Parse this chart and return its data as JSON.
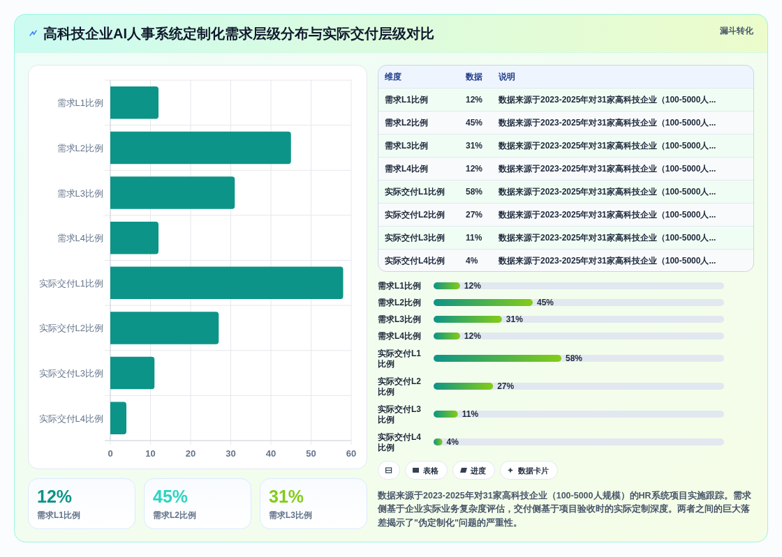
{
  "chart_data": [
    {
      "type": "bar",
      "orientation": "horizontal",
      "title": "高科技企业AI人事系统定制化需求层级分布与实际交付层级对比",
      "categories": [
        "需求L1比例",
        "需求L2比例",
        "需求L3比例",
        "需求L4比例",
        "实际交付L1比例",
        "实际交付L2比例",
        "实际交付L3比例",
        "实际交付L4比例"
      ],
      "values": [
        12,
        45,
        31,
        12,
        58,
        27,
        11,
        4
      ],
      "color": "#0d9488",
      "xlim": [
        0,
        60
      ],
      "xticks": [
        0,
        10,
        20,
        30,
        40,
        50,
        60
      ],
      "grid": true,
      "annotations": [
        "漏斗转化",
        "表格",
        "进度",
        "数据卡片",
        "数据来源于2023-2025年对31家高科技企业（100-5000人规模）的HR系统项目实施跟踪。需求侧基于企业实际业务复杂度评估，交付侧基于项目验收时的实际定制深度。两者之间的巨大落差揭示了\"伪定制化\"问题的严重性。"
      ]
    },
    {
      "type": "other",
      "categories": [
        "需求L1比例",
        "需求L2比例",
        "需求L3比例",
        "需求L4比例",
        "实际交付L1比例",
        "实际交付L2比例",
        "实际交付L3比例",
        "实际交付L4比例"
      ],
      "value_labels": [
        "12%",
        "45%",
        "31%",
        "12%",
        "58%",
        "27%",
        "11%",
        "4%"
      ],
      "annotations": [
        "维度",
        "数据",
        "说明",
        "数据来源于2023-2025年对31家高科技企业（100-5000人...",
        "数据来源于2023-2025年对31家高科技企业（100-5000人...",
        "数据来源于2023-2025年对31家高科技企业（100-5000人...",
        "数据来源于2023-2025年对31家高科技企业（100-5000人...",
        "数据来源于2023-2025年对31家高科技企业（100-5000人...",
        "数据来源于2023-2025年对31家高科技企业（100-5000人...",
        "数据来源于2023-2025年对31家高科技企业（100-5000人...",
        "数据来源于2023-2025年对31家高科技企业（100-5000人..."
      ]
    },
    {
      "type": "bar",
      "orientation": "horizontal",
      "categories": [
        "需求L1比例",
        "需求L2比例",
        "需求L3比例",
        "需求L4比例",
        "实际交付L1比例",
        "实际交付L2比例",
        "实际交付L3比例",
        "实际交付L4比例"
      ],
      "values": [
        12,
        45,
        31,
        12,
        58,
        27,
        11,
        4
      ],
      "value_labels": [
        "12%",
        "45%",
        "31%",
        "12%",
        "58%",
        "27%",
        "11%",
        "4%"
      ],
      "color": "#0d9488",
      "tick_labels": "y"
    },
    {
      "type": "other",
      "categories": [
        "需求L1比例",
        "需求L2比例",
        "需求L3比例"
      ],
      "value_labels": [
        "12%",
        "45%",
        "31%"
      ]
    }
  ]
}
